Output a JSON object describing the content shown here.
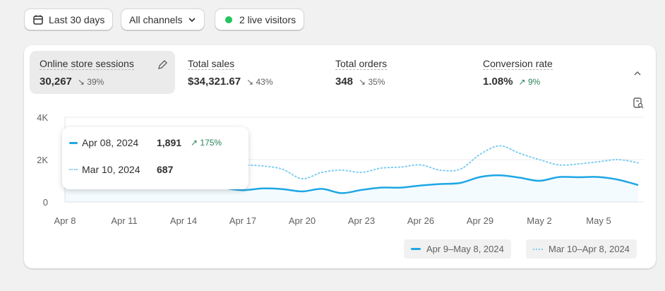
{
  "toolbar": {
    "date_range": "Last 30 days",
    "channels": "All channels",
    "live_visitors": "2 live visitors"
  },
  "metrics": [
    {
      "label": "Online store sessions",
      "value": "30,267",
      "delta": "39%",
      "direction": "down"
    },
    {
      "label": "Total sales",
      "value": "$34,321.67",
      "delta": "43%",
      "direction": "down"
    },
    {
      "label": "Total orders",
      "value": "348",
      "delta": "35%",
      "direction": "down"
    },
    {
      "label": "Conversion rate",
      "value": "1.08%",
      "delta": "9%",
      "direction": "up"
    }
  ],
  "tooltip": {
    "current_date": "Apr 08, 2024",
    "current_value": "1,891",
    "change": "175%",
    "previous_date": "Mar 10, 2024",
    "previous_value": "687"
  },
  "colors": {
    "accent": "#1ea7e4",
    "previous": "#7fcdf0",
    "positive": "#29845a",
    "live": "#22c55e"
  },
  "chart_data": {
    "type": "line",
    "y_ticks": [
      "0",
      "2K",
      "4K"
    ],
    "ylim": [
      0,
      4000
    ],
    "x_ticks": [
      "Apr 8",
      "Apr 11",
      "Apr 14",
      "Apr 17",
      "Apr 20",
      "Apr 23",
      "Apr 26",
      "Apr 29",
      "May 2",
      "May 5"
    ],
    "series": [
      {
        "name": "Apr 9–May 8, 2024",
        "style": "solid",
        "values": [
          1891,
          1800,
          1600,
          1500,
          1400,
          1300,
          930,
          920,
          680,
          560,
          640,
          610,
          500,
          620,
          420,
          570,
          680,
          680,
          780,
          850,
          900,
          1180,
          1260,
          1150,
          1000,
          1180,
          1170,
          1180,
          1050,
          800
        ]
      },
      {
        "name": "Mar 10–Apr 8, 2024",
        "style": "dotted",
        "values": [
          687,
          1500,
          1600,
          1550,
          1500,
          1520,
          1500,
          1500,
          1750,
          1750,
          1700,
          1550,
          1100,
          1400,
          1500,
          1400,
          1600,
          1650,
          1750,
          1500,
          1550,
          2250,
          2650,
          2300,
          2000,
          1750,
          1800,
          1900,
          2000,
          1850
        ]
      }
    ]
  }
}
